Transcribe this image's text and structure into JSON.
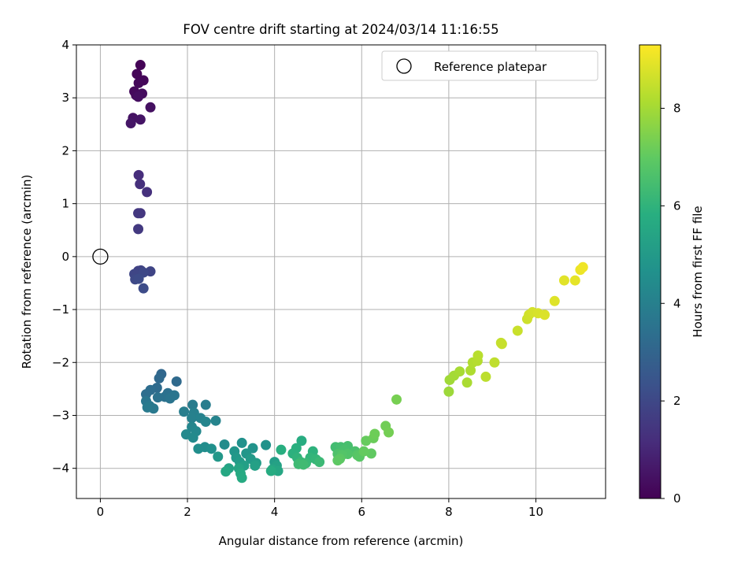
{
  "chart_data": {
    "type": "scatter",
    "title": "FOV centre drift starting at 2024/03/14 11:16:55",
    "xlabel": "Angular distance from reference (arcmin)",
    "ylabel": "Rotation from reference (arcmin)",
    "xlim": [
      -0.55,
      11.6
    ],
    "ylim": [
      -4.57,
      4.0
    ],
    "xticks": [
      0,
      2,
      4,
      6,
      8,
      10
    ],
    "yticks": [
      -4,
      -3,
      -2,
      -1,
      0,
      1,
      2,
      3,
      4
    ],
    "grid": true,
    "legend": {
      "position": "top-right",
      "entries": [
        "Reference platepar"
      ]
    },
    "reference_point": {
      "x": 0,
      "y": 0
    },
    "colorbar": {
      "label": "Hours from first FF file",
      "range": [
        0,
        9.3
      ],
      "ticks": [
        0,
        2,
        4,
        6,
        8
      ],
      "colormap": "viridis"
    },
    "series": [
      {
        "points": [
          {
            "x": 0.92,
            "y": 3.62,
            "c": 0.05
          },
          {
            "x": 0.84,
            "y": 3.45,
            "c": 0.1
          },
          {
            "x": 0.99,
            "y": 3.33,
            "c": 0.12
          },
          {
            "x": 0.88,
            "y": 3.28,
            "c": 0.15
          },
          {
            "x": 0.78,
            "y": 3.12,
            "c": 0.2
          },
          {
            "x": 0.82,
            "y": 3.05,
            "c": 0.25
          },
          {
            "x": 0.96,
            "y": 3.08,
            "c": 0.3
          },
          {
            "x": 0.87,
            "y": 3.02,
            "c": 0.35
          },
          {
            "x": 1.15,
            "y": 2.82,
            "c": 0.4
          },
          {
            "x": 0.75,
            "y": 2.62,
            "c": 0.45
          },
          {
            "x": 0.92,
            "y": 2.59,
            "c": 0.5
          },
          {
            "x": 0.7,
            "y": 2.52,
            "c": 0.55
          },
          {
            "x": 0.88,
            "y": 1.54,
            "c": 1.2
          },
          {
            "x": 0.91,
            "y": 1.37,
            "c": 1.25
          },
          {
            "x": 1.07,
            "y": 1.22,
            "c": 1.3
          },
          {
            "x": 0.92,
            "y": 0.82,
            "c": 1.45
          },
          {
            "x": 0.87,
            "y": 0.82,
            "c": 1.5
          },
          {
            "x": 0.87,
            "y": 0.52,
            "c": 1.55
          },
          {
            "x": 0.87,
            "y": -0.27,
            "c": 1.8
          },
          {
            "x": 0.93,
            "y": -0.26,
            "c": 1.85
          },
          {
            "x": 1.15,
            "y": -0.28,
            "c": 1.9
          },
          {
            "x": 0.78,
            "y": -0.33,
            "c": 1.95
          },
          {
            "x": 0.99,
            "y": -0.3,
            "c": 2.0
          },
          {
            "x": 0.8,
            "y": -0.43,
            "c": 2.05
          },
          {
            "x": 0.88,
            "y": -0.42,
            "c": 2.1
          },
          {
            "x": 0.99,
            "y": -0.6,
            "c": 2.15
          },
          {
            "x": 1.4,
            "y": -2.22,
            "c": 3.1
          },
          {
            "x": 1.35,
            "y": -2.3,
            "c": 3.15
          },
          {
            "x": 1.75,
            "y": -2.36,
            "c": 3.2
          },
          {
            "x": 1.3,
            "y": -2.48,
            "c": 3.25
          },
          {
            "x": 1.15,
            "y": -2.52,
            "c": 3.3
          },
          {
            "x": 1.05,
            "y": -2.6,
            "c": 3.35
          },
          {
            "x": 1.55,
            "y": -2.58,
            "c": 3.4
          },
          {
            "x": 1.48,
            "y": -2.65,
            "c": 3.45
          },
          {
            "x": 1.32,
            "y": -2.66,
            "c": 3.5
          },
          {
            "x": 1.6,
            "y": -2.68,
            "c": 3.55
          },
          {
            "x": 1.7,
            "y": -2.62,
            "c": 3.6
          },
          {
            "x": 1.05,
            "y": -2.73,
            "c": 3.65
          },
          {
            "x": 1.13,
            "y": -2.82,
            "c": 3.7
          },
          {
            "x": 1.22,
            "y": -2.87,
            "c": 3.75
          },
          {
            "x": 1.08,
            "y": -2.85,
            "c": 3.8
          },
          {
            "x": 2.12,
            "y": -2.8,
            "c": 3.85
          },
          {
            "x": 2.42,
            "y": -2.8,
            "c": 3.9
          },
          {
            "x": 1.92,
            "y": -2.93,
            "c": 3.95
          },
          {
            "x": 2.15,
            "y": -2.95,
            "c": 4.0
          },
          {
            "x": 2.1,
            "y": -3.05,
            "c": 4.05
          },
          {
            "x": 2.3,
            "y": -3.05,
            "c": 4.1
          },
          {
            "x": 2.65,
            "y": -3.1,
            "c": 4.15
          },
          {
            "x": 2.42,
            "y": -3.12,
            "c": 4.2
          },
          {
            "x": 2.1,
            "y": -3.22,
            "c": 4.25
          },
          {
            "x": 2.2,
            "y": -3.3,
            "c": 4.3
          },
          {
            "x": 1.97,
            "y": -3.36,
            "c": 4.35
          },
          {
            "x": 2.13,
            "y": -3.42,
            "c": 4.4
          },
          {
            "x": 2.85,
            "y": -3.55,
            "c": 4.45
          },
          {
            "x": 2.4,
            "y": -3.6,
            "c": 4.5
          },
          {
            "x": 2.25,
            "y": -3.63,
            "c": 4.55
          },
          {
            "x": 2.55,
            "y": -3.63,
            "c": 4.6
          },
          {
            "x": 3.25,
            "y": -3.52,
            "c": 4.65
          },
          {
            "x": 3.8,
            "y": -3.56,
            "c": 4.7
          },
          {
            "x": 3.5,
            "y": -3.62,
            "c": 4.75
          },
          {
            "x": 3.08,
            "y": -3.68,
            "c": 4.8
          },
          {
            "x": 3.35,
            "y": -3.72,
            "c": 4.85
          },
          {
            "x": 2.7,
            "y": -3.78,
            "c": 4.9
          },
          {
            "x": 3.12,
            "y": -3.8,
            "c": 4.95
          },
          {
            "x": 3.45,
            "y": -3.82,
            "c": 5.0
          },
          {
            "x": 3.2,
            "y": -3.88,
            "c": 5.05
          },
          {
            "x": 3.58,
            "y": -3.9,
            "c": 5.1
          },
          {
            "x": 4.0,
            "y": -3.88,
            "c": 5.15
          },
          {
            "x": 3.3,
            "y": -3.95,
            "c": 5.2
          },
          {
            "x": 3.55,
            "y": -3.95,
            "c": 5.25
          },
          {
            "x": 4.05,
            "y": -3.95,
            "c": 5.3
          },
          {
            "x": 2.95,
            "y": -4.0,
            "c": 5.35
          },
          {
            "x": 3.18,
            "y": -4.0,
            "c": 5.4
          },
          {
            "x": 3.95,
            "y": -4.02,
            "c": 5.45
          },
          {
            "x": 4.08,
            "y": -4.05,
            "c": 5.5
          },
          {
            "x": 2.88,
            "y": -4.06,
            "c": 5.55
          },
          {
            "x": 3.22,
            "y": -4.1,
            "c": 5.6
          },
          {
            "x": 3.25,
            "y": -4.18,
            "c": 5.65
          },
          {
            "x": 3.92,
            "y": -4.05,
            "c": 5.7
          },
          {
            "x": 4.62,
            "y": -3.48,
            "c": 5.75
          },
          {
            "x": 4.15,
            "y": -3.65,
            "c": 5.8
          },
          {
            "x": 4.5,
            "y": -3.62,
            "c": 5.85
          },
          {
            "x": 4.42,
            "y": -3.72,
            "c": 5.9
          },
          {
            "x": 4.88,
            "y": -3.68,
            "c": 5.95
          },
          {
            "x": 4.52,
            "y": -3.8,
            "c": 6.0
          },
          {
            "x": 4.82,
            "y": -3.8,
            "c": 6.05
          },
          {
            "x": 4.95,
            "y": -3.83,
            "c": 6.1
          },
          {
            "x": 4.6,
            "y": -3.88,
            "c": 6.15
          },
          {
            "x": 4.72,
            "y": -3.9,
            "c": 6.2
          },
          {
            "x": 5.03,
            "y": -3.88,
            "c": 6.25
          },
          {
            "x": 4.55,
            "y": -3.92,
            "c": 6.3
          },
          {
            "x": 4.66,
            "y": -3.93,
            "c": 6.35
          },
          {
            "x": 5.4,
            "y": -3.6,
            "c": 6.4
          },
          {
            "x": 5.52,
            "y": -3.6,
            "c": 6.45
          },
          {
            "x": 5.68,
            "y": -3.58,
            "c": 6.5
          },
          {
            "x": 5.6,
            "y": -3.65,
            "c": 6.55
          },
          {
            "x": 5.85,
            "y": -3.68,
            "c": 6.6
          },
          {
            "x": 5.45,
            "y": -3.73,
            "c": 6.65
          },
          {
            "x": 5.68,
            "y": -3.73,
            "c": 6.7
          },
          {
            "x": 5.55,
            "y": -3.75,
            "c": 6.75
          },
          {
            "x": 5.9,
            "y": -3.75,
            "c": 6.8
          },
          {
            "x": 5.95,
            "y": -3.78,
            "c": 6.85
          },
          {
            "x": 5.5,
            "y": -3.82,
            "c": 6.9
          },
          {
            "x": 5.45,
            "y": -3.85,
            "c": 6.95
          },
          {
            "x": 6.22,
            "y": -3.72,
            "c": 7.0
          },
          {
            "x": 6.05,
            "y": -3.68,
            "c": 7.05
          },
          {
            "x": 6.1,
            "y": -3.48,
            "c": 7.1
          },
          {
            "x": 6.27,
            "y": -3.43,
            "c": 7.15
          },
          {
            "x": 6.3,
            "y": -3.35,
            "c": 7.2
          },
          {
            "x": 6.55,
            "y": -3.2,
            "c": 7.25
          },
          {
            "x": 6.62,
            "y": -3.32,
            "c": 7.3
          },
          {
            "x": 6.8,
            "y": -2.7,
            "c": 7.35
          },
          {
            "x": 8.0,
            "y": -2.55,
            "c": 7.9
          },
          {
            "x": 8.02,
            "y": -2.33,
            "c": 7.95
          },
          {
            "x": 8.12,
            "y": -2.25,
            "c": 8.0
          },
          {
            "x": 8.25,
            "y": -2.17,
            "c": 8.05
          },
          {
            "x": 8.42,
            "y": -2.38,
            "c": 8.1
          },
          {
            "x": 8.5,
            "y": -2.15,
            "c": 8.15
          },
          {
            "x": 8.55,
            "y": -2.0,
            "c": 8.2
          },
          {
            "x": 8.66,
            "y": -1.97,
            "c": 8.25
          },
          {
            "x": 8.67,
            "y": -1.87,
            "c": 8.3
          },
          {
            "x": 8.85,
            "y": -2.27,
            "c": 8.35
          },
          {
            "x": 9.05,
            "y": -2.0,
            "c": 8.4
          },
          {
            "x": 9.2,
            "y": -1.63,
            "c": 8.45
          },
          {
            "x": 9.22,
            "y": -1.65,
            "c": 8.5
          },
          {
            "x": 9.58,
            "y": -1.4,
            "c": 8.55
          },
          {
            "x": 9.8,
            "y": -1.18,
            "c": 8.6
          },
          {
            "x": 9.84,
            "y": -1.1,
            "c": 8.65
          },
          {
            "x": 9.92,
            "y": -1.05,
            "c": 8.7
          },
          {
            "x": 10.05,
            "y": -1.07,
            "c": 8.75
          },
          {
            "x": 10.2,
            "y": -1.1,
            "c": 8.8
          },
          {
            "x": 10.43,
            "y": -0.84,
            "c": 8.85
          },
          {
            "x": 10.65,
            "y": -0.45,
            "c": 8.9
          },
          {
            "x": 10.9,
            "y": -0.45,
            "c": 8.95
          },
          {
            "x": 11.02,
            "y": -0.25,
            "c": 9.05
          },
          {
            "x": 11.08,
            "y": -0.2,
            "c": 9.1
          }
        ]
      }
    ]
  }
}
